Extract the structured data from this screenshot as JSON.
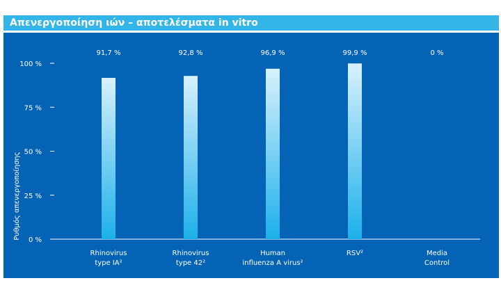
{
  "header": {
    "title": "Απενεργοποίηση ιών – αποτελέσματα in vitro"
  },
  "colors": {
    "title_bar": "#33b5e8",
    "panel": "#0563b6",
    "bar_top": "#d8f1fc",
    "bar_bottom": "#1bb0ea"
  },
  "chart_data": {
    "type": "bar",
    "title": "Απενεργοποίηση ιών – αποτελέσματα in vitro",
    "ylabel": "Ρυθμός απενεργοποίησης",
    "xlabel": "",
    "ylim": [
      0,
      100
    ],
    "yticks": [
      "0 %",
      "25 %",
      "50 %",
      "75 %",
      "100 %"
    ],
    "grid": false,
    "categories": [
      [
        "Rhinovirus",
        "type IA²"
      ],
      [
        "Rhinovirus",
        "type 42²"
      ],
      [
        "Human",
        "influenza A virus²"
      ],
      [
        "RSV²"
      ],
      [
        "Media",
        "Control"
      ]
    ],
    "values": [
      91.7,
      92.8,
      96.9,
      99.9,
      0
    ],
    "value_labels": [
      "91,7 %",
      "92,8 %",
      "96,9 %",
      "99,9 %",
      "0 %"
    ]
  }
}
